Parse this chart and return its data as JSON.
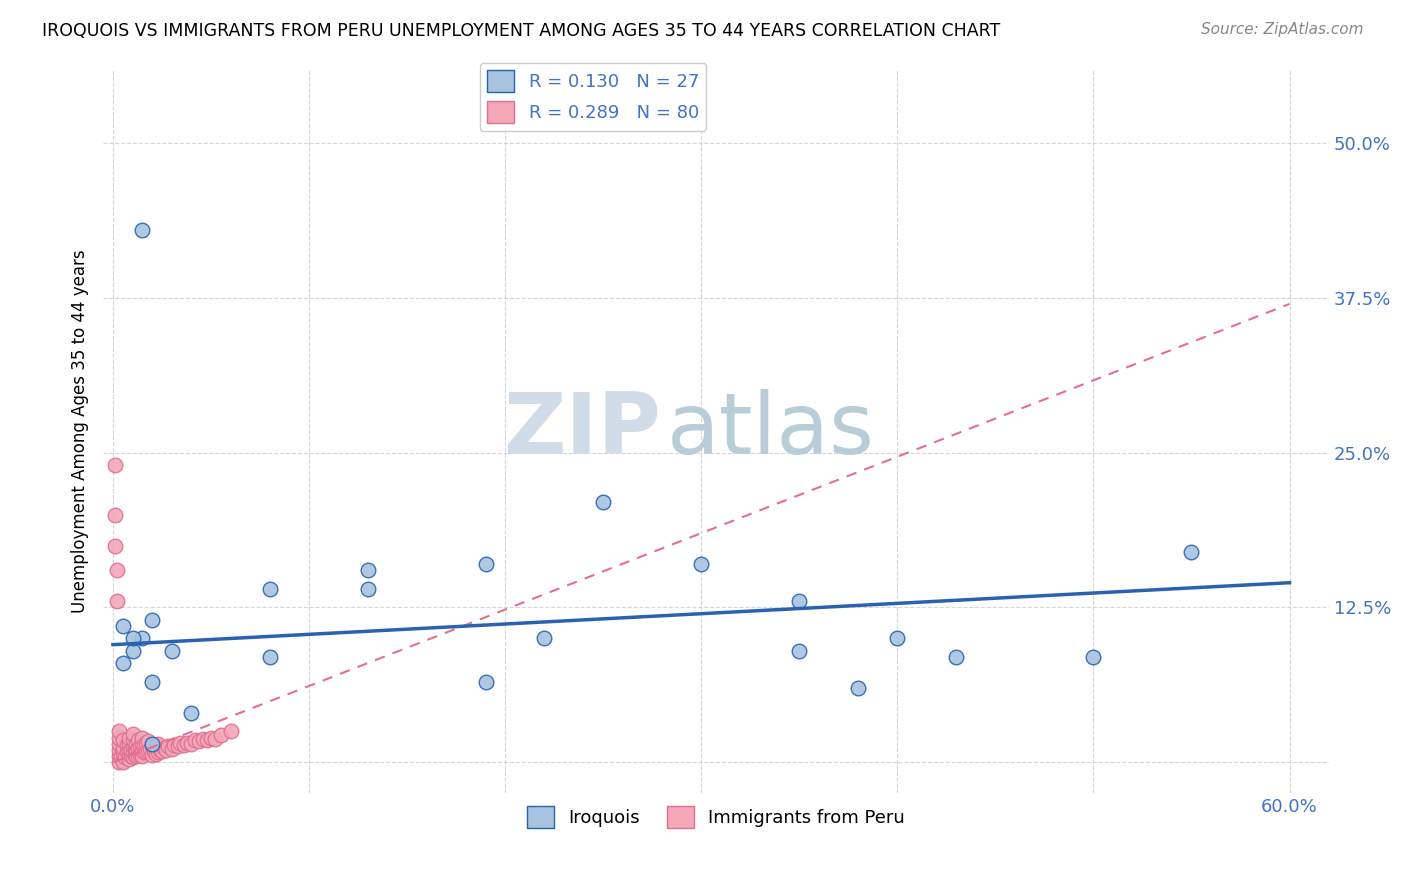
{
  "title": "IROQUOIS VS IMMIGRANTS FROM PERU UNEMPLOYMENT AMONG AGES 35 TO 44 YEARS CORRELATION CHART",
  "source": "Source: ZipAtlas.com",
  "ylabel": "Unemployment Among Ages 35 to 44 years",
  "xlim": [
    0.0,
    0.62
  ],
  "ylim": [
    -0.025,
    0.56
  ],
  "xticks": [
    0.0,
    0.1,
    0.2,
    0.3,
    0.4,
    0.5,
    0.6
  ],
  "yticks": [
    0.0,
    0.125,
    0.25,
    0.375,
    0.5
  ],
  "ytick_labels": [
    "",
    "12.5%",
    "25.0%",
    "37.5%",
    "50.0%"
  ],
  "xtick_labels": [
    "0.0%",
    "",
    "",
    "",
    "",
    "",
    "60.0%"
  ],
  "iroquois_color": "#a8c4e0",
  "peru_color": "#f4a7b9",
  "iroquois_line_color": "#2962b0",
  "peru_line_color": "#e07090",
  "R_iroquois": 0.13,
  "N_iroquois": 27,
  "R_peru": 0.289,
  "N_peru": 80,
  "watermark_ZIP": "ZIP",
  "watermark_atlas": "atlas",
  "iroquois_x": [
    0.015,
    0.55,
    0.13,
    0.19,
    0.25,
    0.3,
    0.35,
    0.13,
    0.08,
    0.08,
    0.015,
    0.02,
    0.03,
    0.04,
    0.02,
    0.01,
    0.005,
    0.01,
    0.005,
    0.02,
    0.19,
    0.22,
    0.35,
    0.4,
    0.5,
    0.43,
    0.38
  ],
  "iroquois_y": [
    0.43,
    0.17,
    0.14,
    0.16,
    0.21,
    0.16,
    0.13,
    0.155,
    0.14,
    0.085,
    0.1,
    0.115,
    0.09,
    0.04,
    0.015,
    0.09,
    0.08,
    0.1,
    0.11,
    0.065,
    0.065,
    0.1,
    0.09,
    0.1,
    0.085,
    0.085,
    0.06
  ],
  "peru_x": [
    0.003,
    0.003,
    0.003,
    0.003,
    0.003,
    0.003,
    0.004,
    0.005,
    0.005,
    0.005,
    0.005,
    0.005,
    0.006,
    0.007,
    0.007,
    0.008,
    0.008,
    0.008,
    0.008,
    0.008,
    0.009,
    0.009,
    0.01,
    0.01,
    0.01,
    0.01,
    0.01,
    0.011,
    0.011,
    0.012,
    0.012,
    0.012,
    0.013,
    0.013,
    0.013,
    0.014,
    0.014,
    0.015,
    0.015,
    0.015,
    0.015,
    0.016,
    0.016,
    0.017,
    0.017,
    0.018,
    0.018,
    0.019,
    0.02,
    0.02,
    0.021,
    0.022,
    0.022,
    0.023,
    0.023,
    0.024,
    0.025,
    0.026,
    0.027,
    0.028,
    0.03,
    0.031,
    0.033,
    0.034,
    0.036,
    0.038,
    0.04,
    0.042,
    0.044,
    0.046,
    0.048,
    0.05,
    0.052,
    0.055,
    0.06,
    0.001,
    0.001,
    0.001,
    0.002,
    0.002
  ],
  "peru_y": [
    0.005,
    0.01,
    0.015,
    0.02,
    0.025,
    0.0,
    0.005,
    0.002,
    0.008,
    0.012,
    0.018,
    0.0,
    0.004,
    0.008,
    0.014,
    0.003,
    0.007,
    0.011,
    0.016,
    0.02,
    0.005,
    0.01,
    0.004,
    0.008,
    0.013,
    0.018,
    0.023,
    0.006,
    0.012,
    0.005,
    0.01,
    0.015,
    0.006,
    0.012,
    0.018,
    0.007,
    0.013,
    0.005,
    0.01,
    0.015,
    0.02,
    0.008,
    0.014,
    0.009,
    0.016,
    0.01,
    0.017,
    0.011,
    0.006,
    0.013,
    0.009,
    0.007,
    0.014,
    0.008,
    0.015,
    0.01,
    0.009,
    0.012,
    0.01,
    0.013,
    0.011,
    0.014,
    0.013,
    0.016,
    0.014,
    0.016,
    0.015,
    0.018,
    0.017,
    0.019,
    0.018,
    0.02,
    0.019,
    0.022,
    0.025,
    0.24,
    0.2,
    0.175,
    0.155,
    0.13
  ],
  "iroquois_line_x0": 0.0,
  "iroquois_line_y0": 0.095,
  "iroquois_line_x1": 0.6,
  "iroquois_line_y1": 0.145,
  "peru_line_x0": 0.0,
  "peru_line_y0": 0.0,
  "peru_line_x1": 0.6,
  "peru_line_y1": 0.37
}
